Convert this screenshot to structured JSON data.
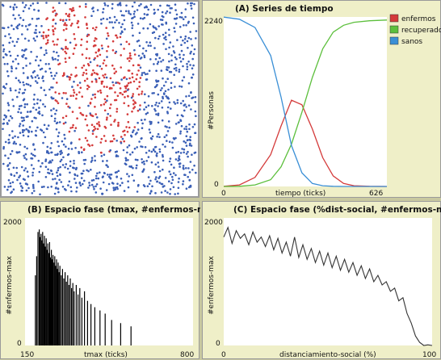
{
  "panels": {
    "world": {
      "name": "world-view"
    },
    "series": {
      "title": "(A) Series de tiempo",
      "ylabel": "#Personas",
      "xlabel": "tiempo (ticks)",
      "ymax_label": "2240",
      "ymin_label": "0",
      "xmin_label": "0",
      "xmax_label": "626",
      "legend": [
        {
          "name": "enfermos",
          "color": "#d43a3a"
        },
        {
          "name": "recuperados",
          "color": "#5cbf3c"
        },
        {
          "name": "sanos",
          "color": "#3a8fd6"
        }
      ]
    },
    "phaseB": {
      "title": "(B) Espacio fase (tmax, #enfermos-max)",
      "ylabel": "#enfermos-max",
      "xlabel": "tmax (ticks)",
      "ymax_label": "2000",
      "ymin_label": "0",
      "xmin_label": "150",
      "xmax_label": "800"
    },
    "phaseC": {
      "title": "(C) Espacio fase (%dist-social, #enfermos-max)",
      "ylabel": "#enfermos-max",
      "xlabel": "distanciamiento-social (%)",
      "ymax_label": "2000",
      "ymin_label": "0",
      "xmin_label": "0",
      "xmax_label": "100"
    }
  },
  "chart_data": [
    {
      "type": "line",
      "title": "(A) Series de tiempo",
      "xlabel": "tiempo (ticks)",
      "ylabel": "#Personas",
      "xlim": [
        0,
        626
      ],
      "ylim": [
        0,
        2240
      ],
      "x": [
        0,
        60,
        120,
        180,
        220,
        260,
        300,
        340,
        380,
        420,
        460,
        500,
        560,
        626
      ],
      "series": [
        {
          "name": "enfermos",
          "color": "#d43a3a",
          "values": [
            2,
            20,
            120,
            420,
            800,
            1140,
            1080,
            760,
            380,
            140,
            40,
            10,
            2,
            0
          ]
        },
        {
          "name": "recuperados",
          "color": "#5cbf3c",
          "values": [
            0,
            2,
            20,
            90,
            260,
            560,
            980,
            1440,
            1820,
            2040,
            2130,
            2170,
            2190,
            2200
          ]
        },
        {
          "name": "sanos",
          "color": "#3a8fd6",
          "values": [
            2238,
            2210,
            2100,
            1730,
            1180,
            540,
            180,
            40,
            10,
            2,
            0,
            0,
            0,
            0
          ]
        }
      ]
    },
    {
      "type": "bar",
      "title": "(B) Espacio fase (tmax, #enfermos-max)",
      "xlabel": "tmax (ticks)",
      "ylabel": "#enfermos-max",
      "xlim": [
        150,
        800
      ],
      "ylim": [
        0,
        2000
      ],
      "x": [
        190,
        195,
        200,
        205,
        208,
        212,
        215,
        218,
        222,
        225,
        228,
        232,
        235,
        238,
        242,
        245,
        248,
        252,
        255,
        258,
        262,
        265,
        268,
        272,
        275,
        278,
        282,
        285,
        290,
        295,
        300,
        305,
        310,
        315,
        320,
        325,
        330,
        335,
        340,
        348,
        355,
        362,
        370,
        380,
        392,
        405,
        420,
        440,
        460,
        485,
        520,
        560
      ],
      "values": [
        1100,
        1400,
        1780,
        1820,
        1700,
        1750,
        1650,
        1780,
        1600,
        1720,
        1550,
        1680,
        1500,
        1600,
        1450,
        1620,
        1380,
        1500,
        1350,
        1420,
        1300,
        1400,
        1250,
        1350,
        1200,
        1300,
        1150,
        1250,
        1100,
        1200,
        1050,
        1150,
        1000,
        1100,
        950,
        1050,
        900,
        980,
        850,
        950,
        800,
        900,
        750,
        850,
        700,
        650,
        600,
        550,
        500,
        400,
        350,
        300
      ]
    },
    {
      "type": "line",
      "title": "(C) Espacio fase (%dist-social, #enfermos-max)",
      "xlabel": "distanciamiento-social (%)",
      "ylabel": "#enfermos-max",
      "xlim": [
        0,
        100
      ],
      "ylim": [
        0,
        2000
      ],
      "x": [
        0,
        2,
        4,
        6,
        8,
        10,
        12,
        14,
        16,
        18,
        20,
        22,
        24,
        26,
        28,
        30,
        32,
        34,
        36,
        38,
        40,
        42,
        44,
        46,
        48,
        50,
        52,
        54,
        56,
        58,
        60,
        62,
        64,
        66,
        68,
        70,
        72,
        74,
        76,
        78,
        80,
        82,
        84,
        86,
        88,
        90,
        92,
        94,
        96,
        98,
        100
      ],
      "values": [
        1700,
        1850,
        1600,
        1800,
        1680,
        1750,
        1580,
        1780,
        1620,
        1700,
        1550,
        1720,
        1500,
        1680,
        1450,
        1620,
        1400,
        1700,
        1380,
        1580,
        1350,
        1520,
        1300,
        1480,
        1260,
        1450,
        1220,
        1400,
        1180,
        1350,
        1150,
        1300,
        1100,
        1250,
        1050,
        1200,
        1000,
        1100,
        950,
        1000,
        850,
        900,
        700,
        750,
        500,
        350,
        150,
        50,
        0,
        10,
        0
      ]
    }
  ]
}
